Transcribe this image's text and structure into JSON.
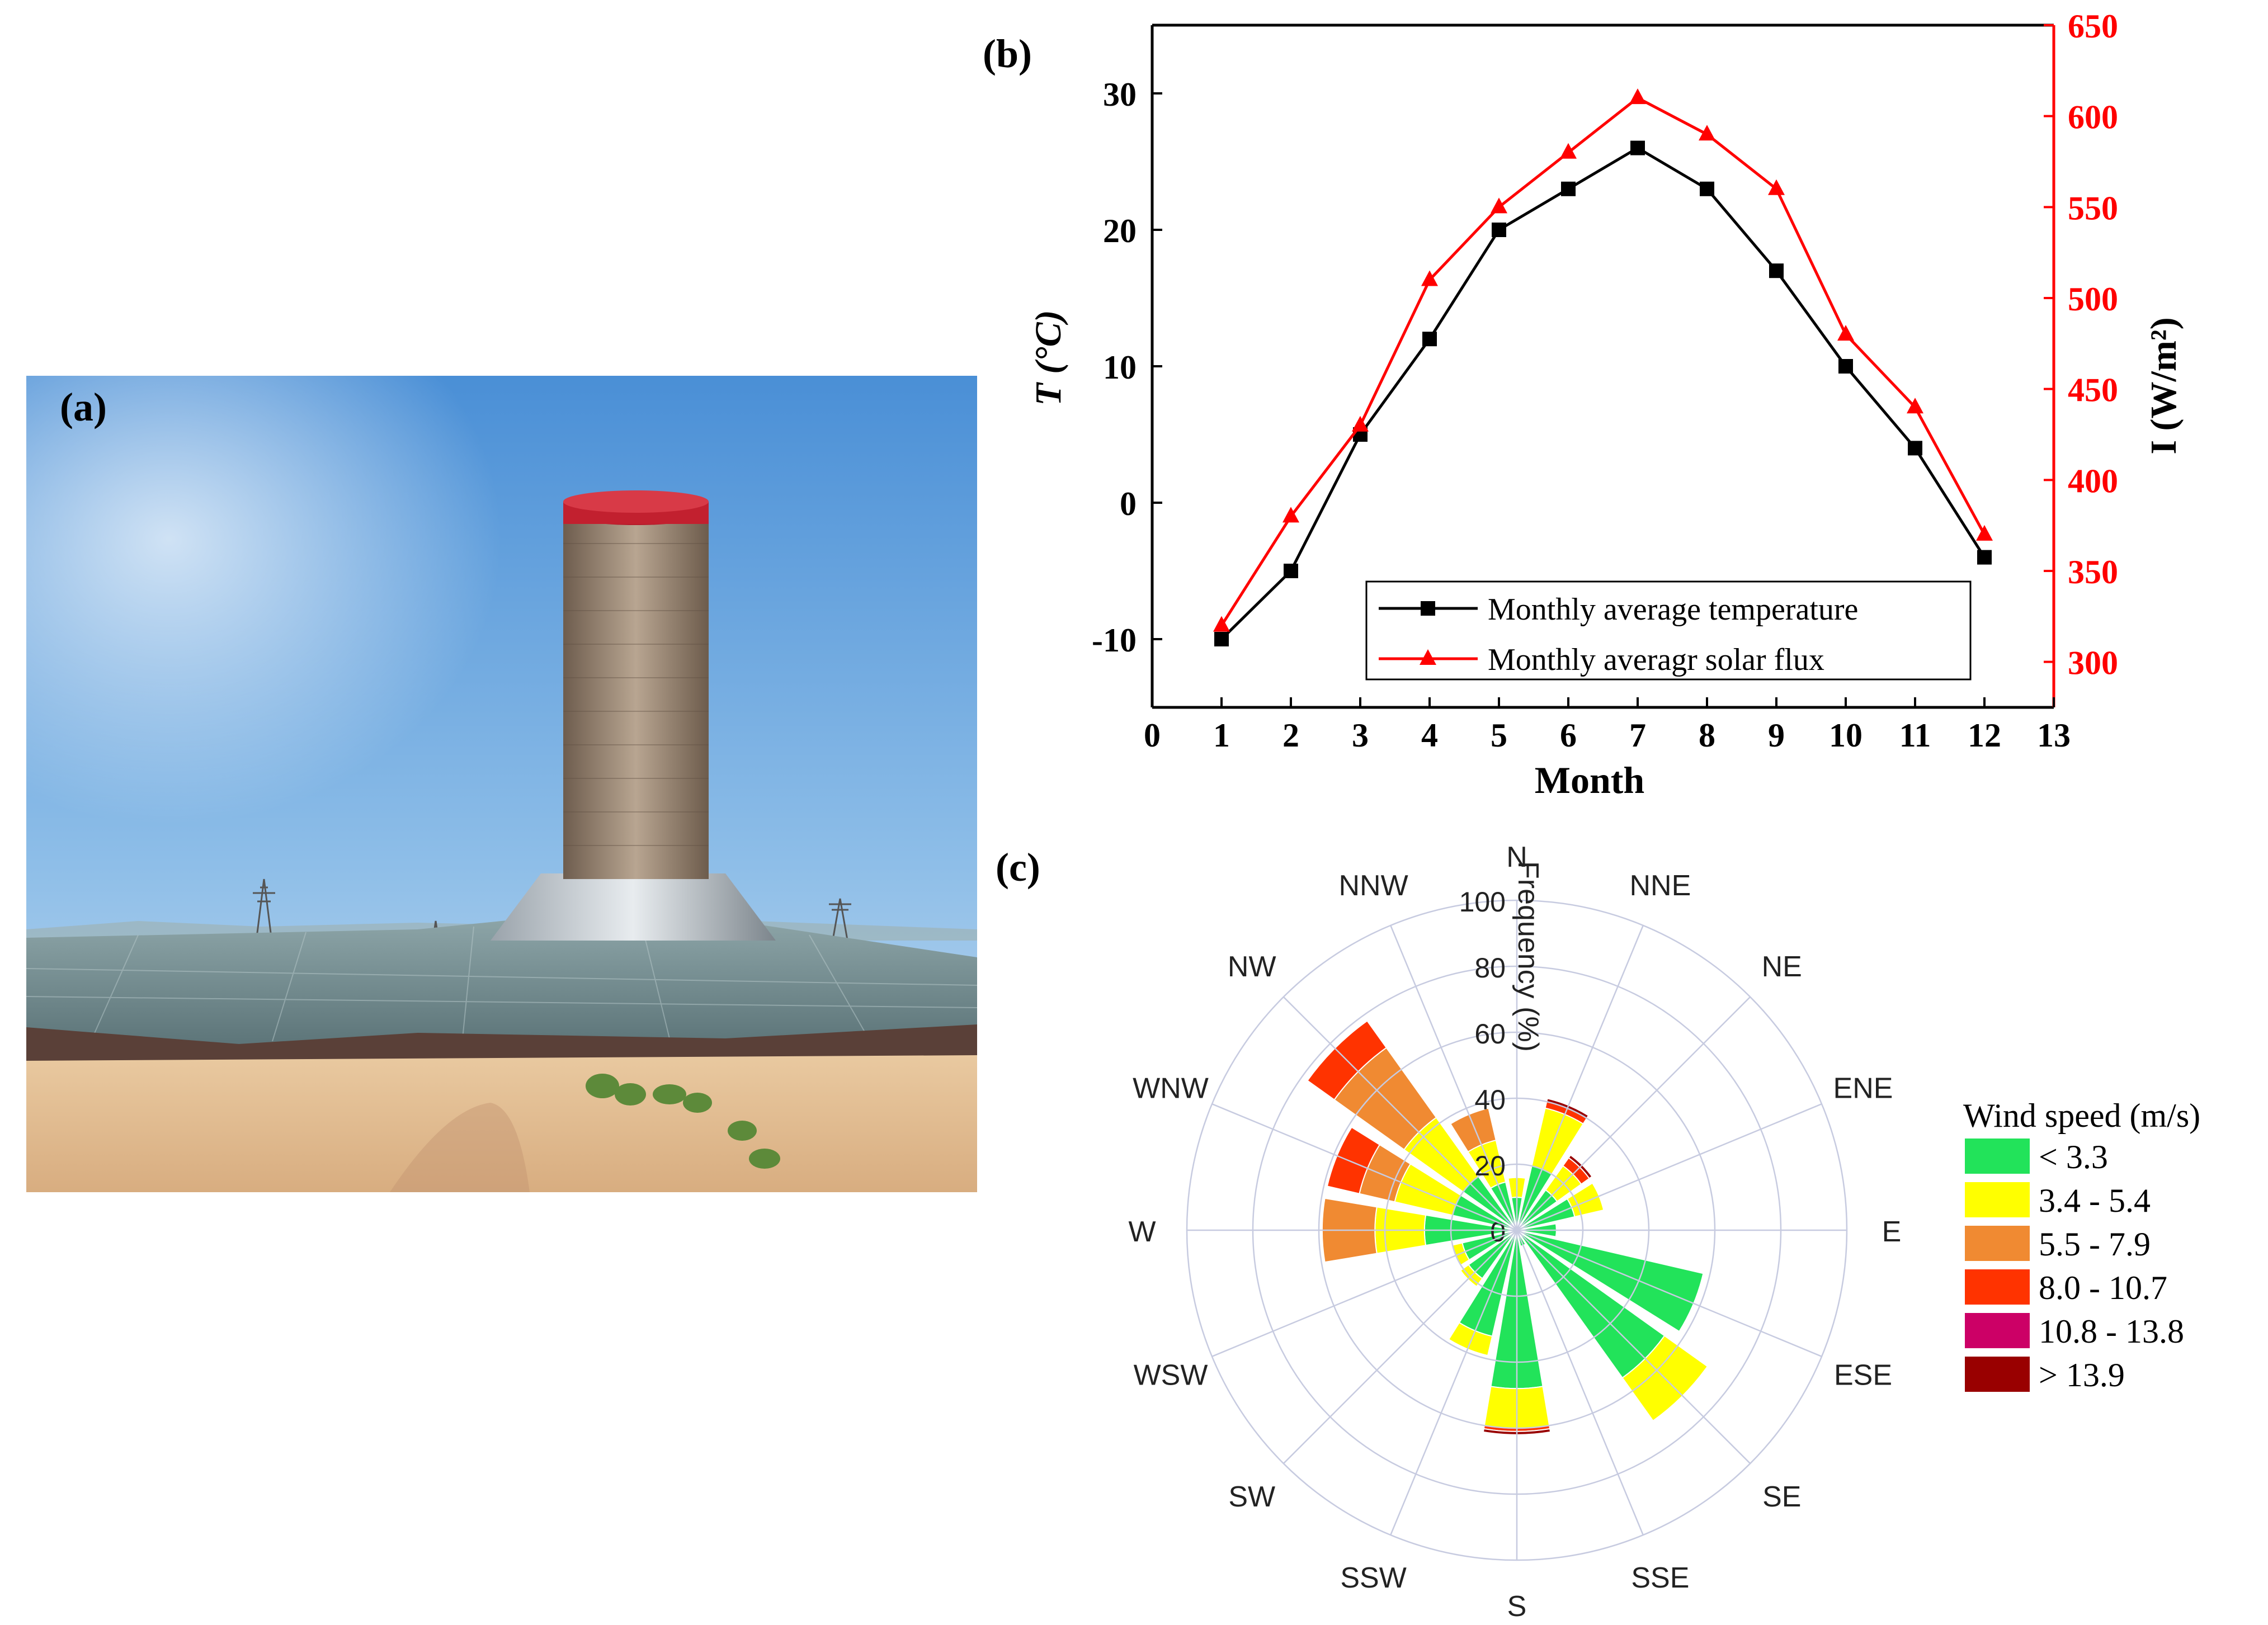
{
  "panels": {
    "a": {
      "label": "(a)"
    },
    "b": {
      "label": "(b)"
    },
    "c": {
      "label": "(c)"
    }
  },
  "chart_data": [
    {
      "type": "line",
      "panel": "(b)",
      "xlabel": "Month",
      "ylabel_left": "T (°C)",
      "ylabel_right": "I (W/m²)",
      "xlim": [
        0,
        13
      ],
      "ylim_left": [
        -15,
        35
      ],
      "ylim_right": [
        275,
        650
      ],
      "x_ticks": [
        "0",
        "1",
        "2",
        "3",
        "4",
        "5",
        "6",
        "7",
        "8",
        "9",
        "10",
        "11",
        "12",
        "13"
      ],
      "y_left_ticks": [
        "-10",
        "0",
        "10",
        "20",
        "30"
      ],
      "y_right_ticks": [
        "300",
        "350",
        "400",
        "450",
        "500",
        "550",
        "600",
        "650"
      ],
      "x": [
        1,
        2,
        3,
        4,
        5,
        6,
        7,
        8,
        9,
        10,
        11,
        12
      ],
      "series": [
        {
          "name": "Monthly average temperature",
          "axis": "left",
          "color": "#000000",
          "marker": "square",
          "values": [
            -10,
            -5,
            5,
            12,
            20,
            23,
            26,
            23,
            17,
            10,
            4,
            -4
          ]
        },
        {
          "name": "Monthly averagr solar flux",
          "axis": "right",
          "color": "#ff0000",
          "marker": "triangle",
          "values": [
            320,
            380,
            430,
            510,
            550,
            580,
            610,
            590,
            560,
            480,
            440,
            370
          ]
        }
      ],
      "legend_position": "bottom-right"
    },
    {
      "type": "wind-rose",
      "panel": "(c)",
      "radial_label": "Frequency (%)",
      "radial_ticks": [
        "0",
        "20",
        "40",
        "60",
        "80",
        "100"
      ],
      "r_max": 100,
      "directions": [
        "N",
        "NNE",
        "NE",
        "ENE",
        "E",
        "ESE",
        "SE",
        "SSE",
        "S",
        "SSW",
        "SW",
        "WSW",
        "W",
        "WNW",
        "NW",
        "NNW"
      ],
      "legend_title": "Wind speed  (m/s)",
      "bins": [
        {
          "label": "< 3.3",
          "color": "#22e35a"
        },
        {
          "label": "3.4 - 5.4",
          "color": "#ffff00"
        },
        {
          "label": "5.5 - 7.9",
          "color": "#f08a32"
        },
        {
          "label": "8.0 - 10.7",
          "color": "#ff3300"
        },
        {
          "label": "10.8 - 13.8",
          "color": "#cc0066"
        },
        {
          "label": "> 13.9",
          "color": "#990000"
        }
      ],
      "stacks": {
        "N": [
          10,
          6,
          0,
          0,
          0,
          0
        ],
        "NNE": [
          20,
          18,
          0,
          2,
          0,
          1
        ],
        "NE": [
          15,
          9,
          0,
          3,
          0,
          1
        ],
        "ENE": [
          18,
          9,
          0,
          0,
          0,
          0
        ],
        "E": [
          12,
          0,
          0,
          0,
          0,
          0
        ],
        "ESE": [
          58,
          0,
          0,
          0,
          0,
          0
        ],
        "SE": [
          55,
          16,
          0,
          0,
          0,
          0
        ],
        "SSE": [
          5,
          0,
          0,
          0,
          0,
          0
        ],
        "S": [
          48,
          12,
          0,
          1,
          0,
          1
        ],
        "SSW": [
          33,
          6,
          0,
          0,
          0,
          0
        ],
        "SW": [
          18,
          3,
          0,
          0,
          0,
          0
        ],
        "WSW": [
          17,
          3,
          0,
          0,
          0,
          0
        ],
        "W": [
          28,
          15,
          16,
          0,
          0,
          0
        ],
        "WNW": [
          20,
          18,
          11,
          10,
          0,
          0
        ],
        "NW": [
          20,
          22,
          26,
          10,
          0,
          0
        ],
        "NNW": [
          15,
          13,
          10,
          0,
          0,
          0
        ]
      }
    }
  ]
}
